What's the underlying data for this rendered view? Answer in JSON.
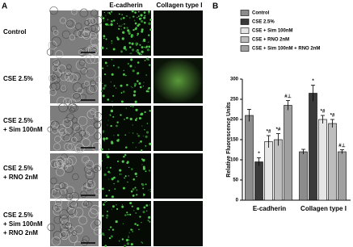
{
  "panel_a": {
    "label": "A",
    "columns": [
      "E-cadherin",
      "Collagen type I"
    ],
    "rows": [
      [
        "Control"
      ],
      [
        "CSE 2.5%"
      ],
      [
        "CSE 2.5%",
        "+ Sim 100nM"
      ],
      [
        "CSE 2.5%",
        "+ RNO 2nM"
      ],
      [
        "CSE 2.5%",
        "+ Sim 100nM",
        "+ RNO 2nM"
      ]
    ]
  },
  "chart_data": {
    "type": "bar",
    "panel_label": "B",
    "ylabel": "Relative Fluorescence Units",
    "categories": [
      "E-cadherin",
      "Collagen type I"
    ],
    "ylim": [
      0,
      300
    ],
    "yticks": [
      0,
      50,
      100,
      150,
      200,
      250,
      300
    ],
    "series": [
      {
        "name": "Control",
        "color": "#8c8c8c",
        "values": [
          210,
          120
        ],
        "errors": [
          15,
          6
        ],
        "marks": [
          null,
          null
        ]
      },
      {
        "name": "CSE 2.5%",
        "color": "#3a3a3a",
        "values": [
          95,
          265
        ],
        "errors": [
          10,
          20
        ],
        "marks": [
          "*",
          "*"
        ]
      },
      {
        "name": "CSE + Sim 100nM",
        "color": "#e6e6e6",
        "values": [
          145,
          200
        ],
        "errors": [
          15,
          10
        ],
        "marks": [
          "*#",
          "*#"
        ]
      },
      {
        "name": "CSE + RNO 2nM",
        "color": "#bdbdbd",
        "values": [
          150,
          190
        ],
        "errors": [
          15,
          10
        ],
        "marks": [
          "*#",
          "*#"
        ]
      },
      {
        "name": "CSE + Sim 100nM + RNO 2nM",
        "color": "#a0a0a0",
        "values": [
          235,
          120
        ],
        "errors": [
          12,
          5
        ],
        "marks": [
          "#⊥",
          "#⊥"
        ]
      }
    ]
  }
}
